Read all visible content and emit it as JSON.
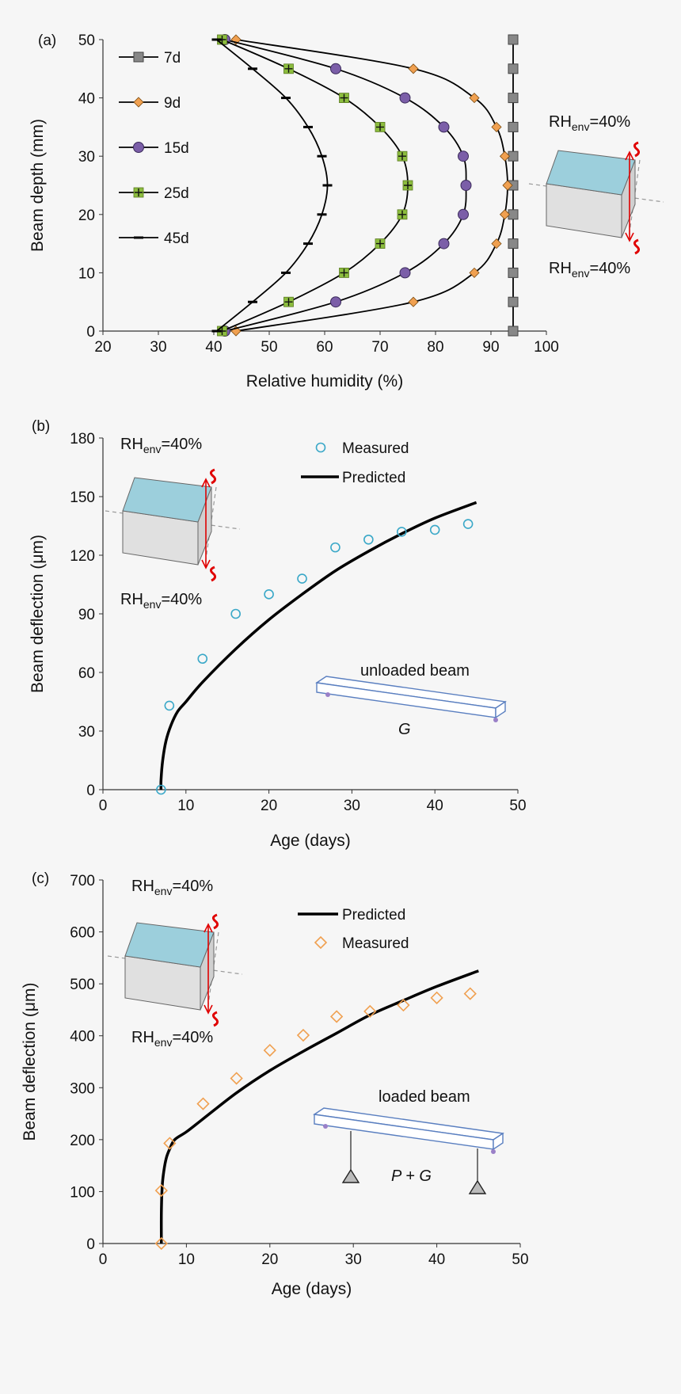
{
  "colors": {
    "background": "#f6f6f6",
    "axis": "#333333",
    "predicted_line": "#000000",
    "measured_b": "#3aa8c8",
    "measured_c": "#f0a050",
    "s7d": "#888888",
    "s9d": "#f0a050",
    "s15d": "#7b5ea8",
    "s25d": "#8cbd3e",
    "s45d": "#000000",
    "cube_top": "#9ccfdc",
    "cube_side": "#e0e0e0",
    "arrow": "#e00000",
    "beam": "#5a7fc0"
  },
  "annotations": {
    "rh_prefix": "RH",
    "rh_sub": "env",
    "rh_value": "=40%",
    "unloaded_beam": "unloaded beam",
    "unloaded_load": "G",
    "loaded_beam": "loaded beam",
    "loaded_load": "P + G"
  },
  "chart_data": [
    {
      "panel": "(a)",
      "type": "line",
      "xlabel": "Relative humidity (%)",
      "ylabel": "Beam depth  (mm)",
      "xlim": [
        20,
        100
      ],
      "ylim": [
        0,
        50
      ],
      "xticks": [
        20,
        30,
        40,
        50,
        60,
        70,
        80,
        90,
        100
      ],
      "yticks": [
        0,
        10,
        20,
        30,
        40,
        50
      ],
      "legend_position": "top-left",
      "y": [
        0,
        5,
        10,
        15,
        20,
        25,
        30,
        35,
        40,
        45,
        50
      ],
      "series": [
        {
          "name": "7d",
          "marker": "square",
          "x": [
            94,
            94,
            94,
            94,
            94,
            94,
            94,
            94,
            94,
            94,
            94
          ]
        },
        {
          "name": "9d",
          "marker": "diamond",
          "x": [
            44,
            76,
            87,
            91,
            92.5,
            93,
            92.5,
            91,
            87,
            76,
            44
          ]
        },
        {
          "name": "15d",
          "marker": "circle",
          "x": [
            42,
            62,
            74.5,
            81.5,
            85,
            85.5,
            85,
            81.5,
            74.5,
            62,
            42
          ]
        },
        {
          "name": "25d",
          "marker": "plus-square",
          "x": [
            41.5,
            53.5,
            63.5,
            70,
            74,
            75,
            74,
            70,
            63.5,
            53.5,
            41.5
          ]
        },
        {
          "name": "45d",
          "marker": "dash",
          "x": [
            40.5,
            47,
            53,
            57,
            59.5,
            60.5,
            59.5,
            57,
            53,
            47,
            40.5
          ]
        }
      ]
    },
    {
      "panel": "(b)",
      "type": "line",
      "xlabel": "Age (days)",
      "ylabel": "Beam deflection (μm)",
      "xlim": [
        0,
        50
      ],
      "ylim": [
        0,
        180
      ],
      "xticks": [
        0,
        10,
        20,
        30,
        40,
        50
      ],
      "yticks": [
        0,
        30,
        60,
        90,
        120,
        150,
        180
      ],
      "legend_position": "top-center",
      "series": [
        {
          "name": "Measured",
          "style": "open-circle",
          "x": [
            7,
            8,
            12,
            16,
            20,
            24,
            28,
            32,
            36,
            40,
            44
          ],
          "y": [
            0,
            43,
            67,
            90,
            100,
            108,
            124,
            128,
            132,
            133,
            136
          ]
        },
        {
          "name": "Predicted",
          "style": "line",
          "x": [
            7,
            7,
            7.2,
            7.6,
            8.2,
            9,
            10,
            12,
            16,
            20,
            24,
            28,
            32,
            36,
            40,
            45
          ],
          "y": [
            0,
            5,
            15,
            25,
            33,
            40,
            45,
            55,
            72,
            87,
            100,
            112,
            122,
            131,
            139,
            147
          ]
        }
      ]
    },
    {
      "panel": "(c)",
      "type": "line",
      "xlabel": "Age (days)",
      "ylabel": "Beam deflection (μm)",
      "xlim": [
        0,
        50
      ],
      "ylim": [
        0,
        700
      ],
      "xticks": [
        0,
        10,
        20,
        30,
        40,
        50
      ],
      "yticks": [
        0,
        100,
        200,
        300,
        400,
        500,
        600,
        700
      ],
      "legend_position": "top-center",
      "series": [
        {
          "name": "Predicted",
          "style": "line",
          "x": [
            7,
            7,
            7.1,
            7.3,
            7.6,
            8,
            8.6,
            10,
            12,
            16,
            20,
            24,
            28,
            32,
            36,
            40,
            45
          ],
          "y": [
            0,
            60,
            110,
            140,
            165,
            182,
            200,
            215,
            240,
            290,
            333,
            370,
            405,
            440,
            468,
            495,
            525
          ]
        },
        {
          "name": "Measured",
          "style": "open-diamond",
          "x": [
            7,
            7,
            8,
            12,
            16,
            20,
            24,
            28,
            32,
            36,
            40,
            44
          ],
          "y": [
            0,
            102,
            193,
            269,
            318,
            372,
            401,
            437,
            447,
            459,
            473,
            481
          ]
        }
      ]
    }
  ]
}
